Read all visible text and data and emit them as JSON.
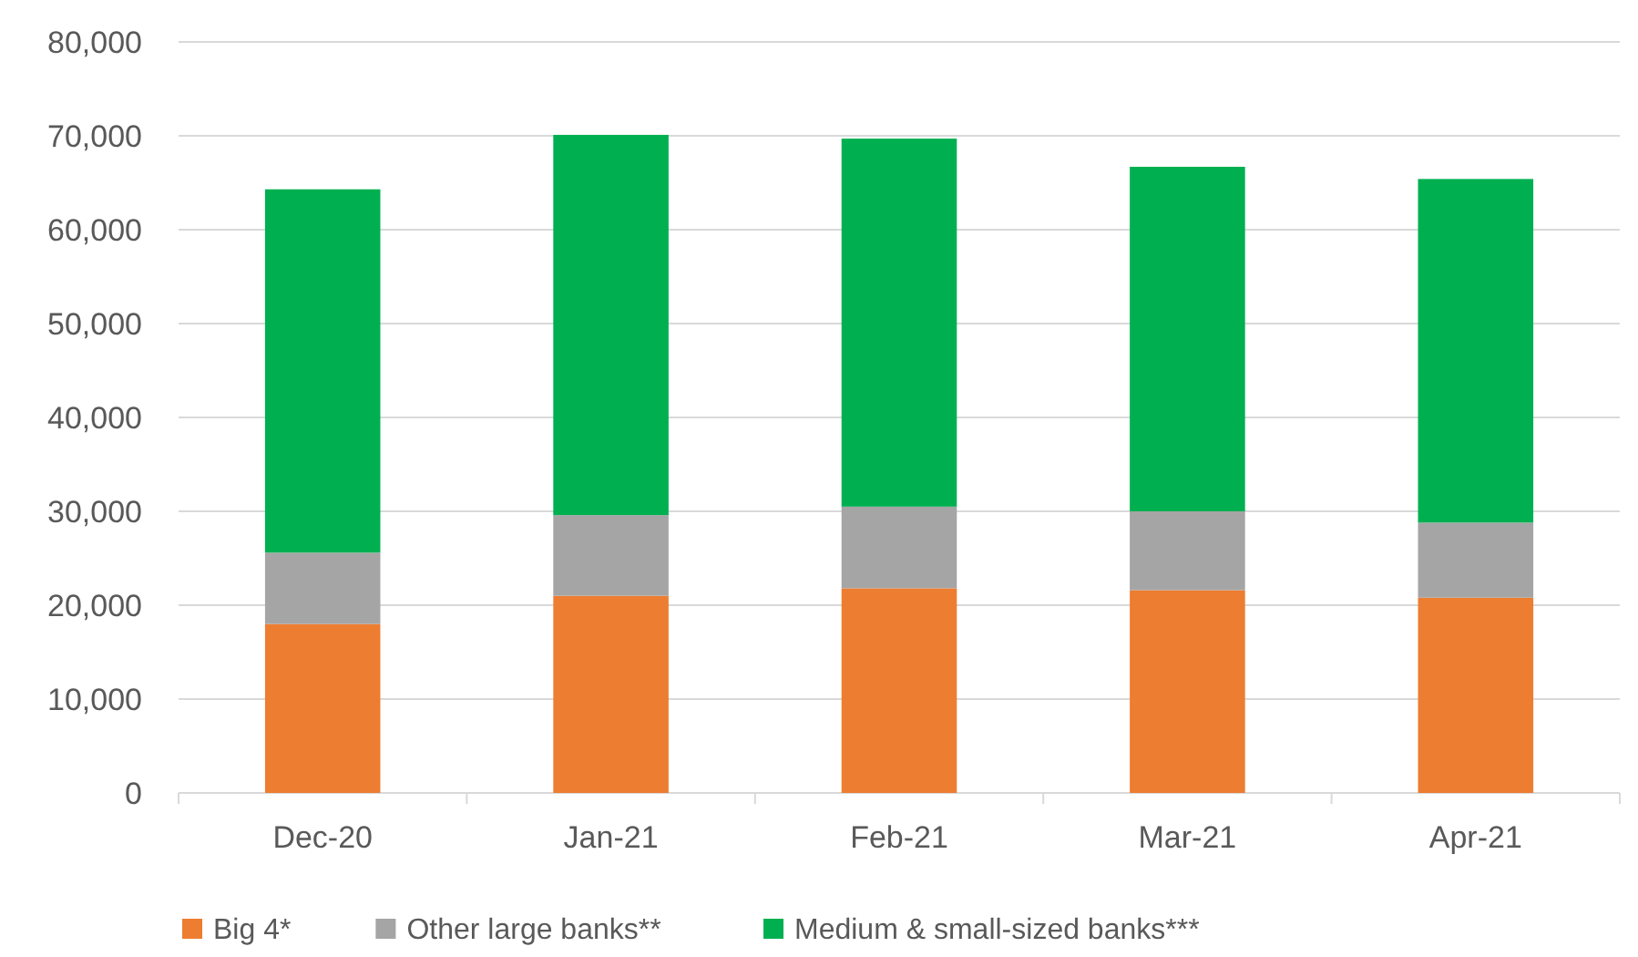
{
  "chart_data": {
    "type": "bar",
    "stacked": true,
    "categories": [
      "Dec-20",
      "Jan-21",
      "Feb-21",
      "Mar-21",
      "Apr-21"
    ],
    "series": [
      {
        "name": "Big 4*",
        "color": "#ed7d31",
        "values": [
          18000,
          21000,
          21800,
          21600,
          20800
        ]
      },
      {
        "name": "Other large banks**",
        "color": "#a5a5a5",
        "values": [
          7600,
          8600,
          8700,
          8400,
          8000
        ]
      },
      {
        "name": "Medium & small-sized  banks***",
        "color": "#00b050",
        "values": [
          38700,
          40500,
          39200,
          36700,
          36600
        ]
      }
    ],
    "ylim": [
      0,
      80000
    ],
    "yticks": [
      {
        "value": 0,
        "label": "0"
      },
      {
        "value": 10000,
        "label": "10,000"
      },
      {
        "value": 20000,
        "label": "20,000"
      },
      {
        "value": 30000,
        "label": "30,000"
      },
      {
        "value": 40000,
        "label": "40,000"
      },
      {
        "value": 50000,
        "label": "50,000"
      },
      {
        "value": 60000,
        "label": "60,000"
      },
      {
        "value": 70000,
        "label": "70,000"
      },
      {
        "value": 80000,
        "label": "80,000"
      }
    ],
    "grid": "y",
    "legend": "bottom left"
  }
}
